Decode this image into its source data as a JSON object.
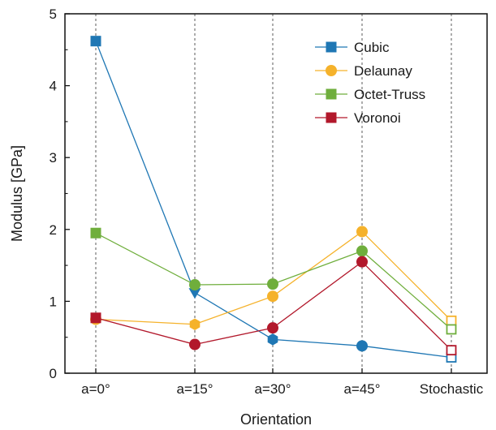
{
  "chart_data": {
    "type": "line",
    "title": "",
    "xlabel": "Orientation",
    "ylabel": "Modulus [GPa]",
    "ylim": [
      0,
      5
    ],
    "yticks": [
      "0",
      "1",
      "2",
      "3",
      "4",
      "5"
    ],
    "categories": [
      "a=0°",
      "a=15°",
      "a=30°",
      "a=45°",
      "Stochastic"
    ],
    "grid": "vertical dashed lines at each category",
    "legend": {
      "placement": "top-right"
    },
    "series": [
      {
        "name": "Cubic",
        "color": "#1f77b4",
        "values": [
          4.62,
          1.12,
          0.47,
          0.38,
          0.22
        ],
        "markers": [
          "square",
          "down-triangle",
          "hexagon",
          "circle",
          "open-square"
        ]
      },
      {
        "name": "Delaunay",
        "color": "#f5b22b",
        "values": [
          0.75,
          0.68,
          1.07,
          1.97,
          0.73
        ],
        "markers": [
          "circle",
          "hexagon",
          "circle",
          "circle",
          "open-square"
        ]
      },
      {
        "name": "Octet-Truss",
        "color": "#6fae3c",
        "values": [
          1.95,
          1.23,
          1.24,
          1.7,
          0.61
        ],
        "markers": [
          "square",
          "circle",
          "circle",
          "circle",
          "open-square"
        ]
      },
      {
        "name": "Voronoi",
        "color": "#b2182b",
        "values": [
          0.77,
          0.4,
          0.63,
          1.55,
          0.32
        ],
        "markers": [
          "square",
          "circle",
          "circle",
          "circle",
          "open-square"
        ]
      }
    ]
  }
}
